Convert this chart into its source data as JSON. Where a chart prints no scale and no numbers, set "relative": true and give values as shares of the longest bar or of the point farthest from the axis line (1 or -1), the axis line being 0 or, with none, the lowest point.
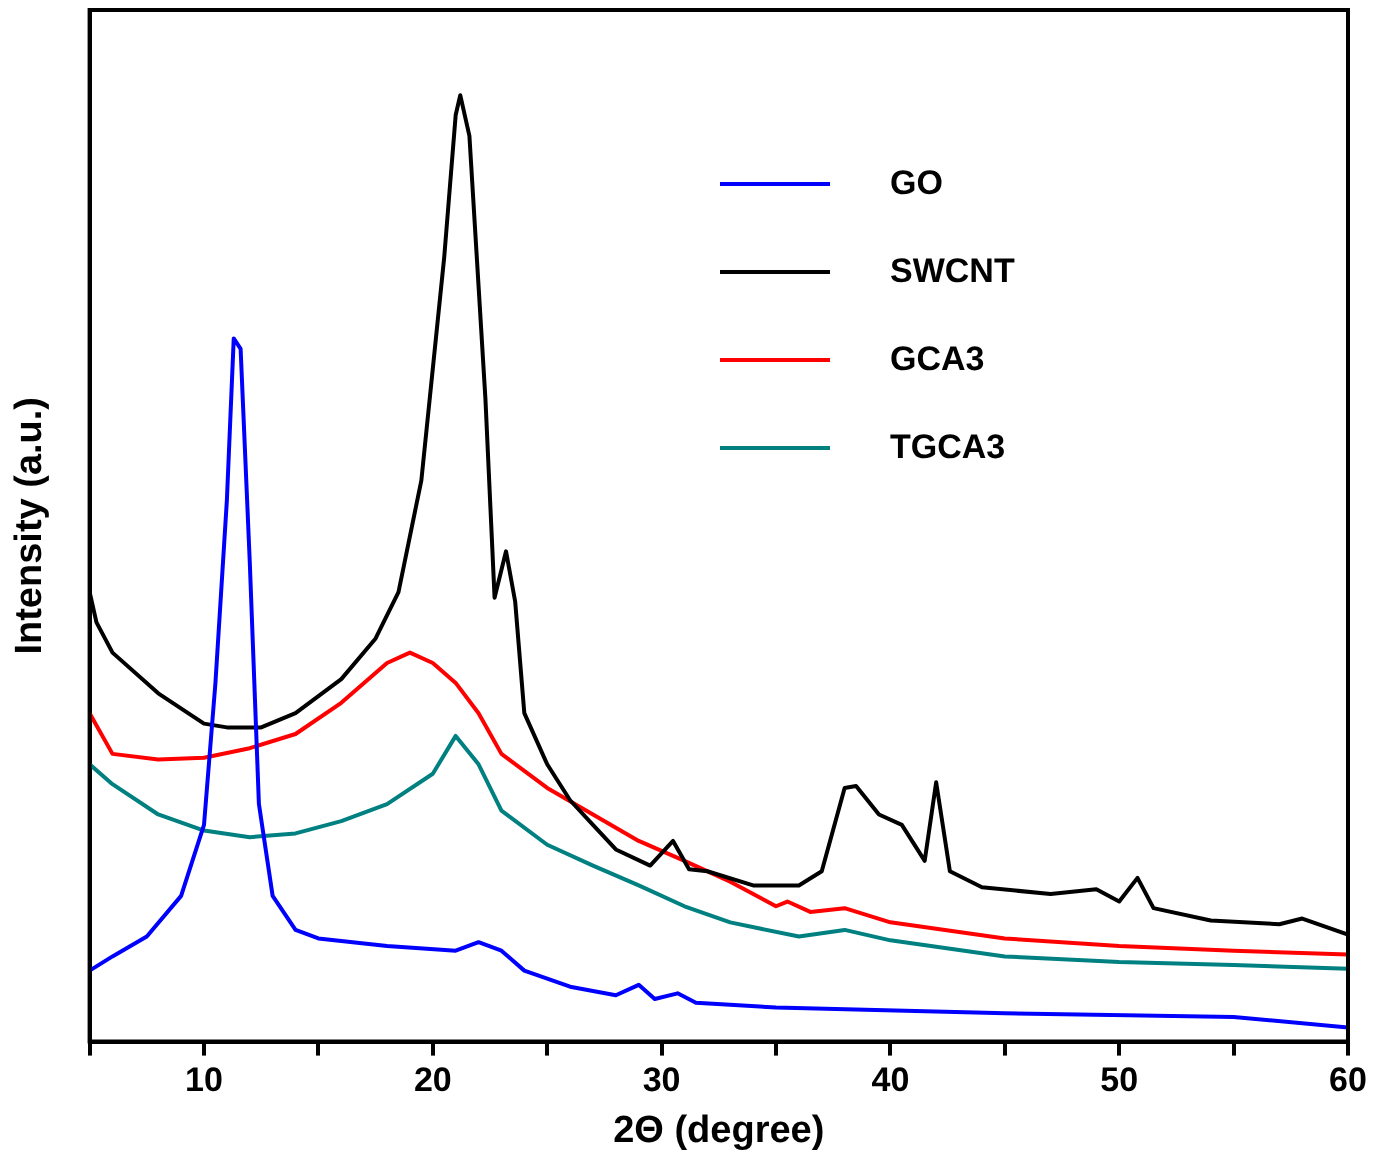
{
  "chart_data": {
    "type": "line",
    "relative": true,
    "xlabel": "2Θ (degree)",
    "ylabel": "Intensity (a.u.)",
    "xlim": [
      5,
      60
    ],
    "xticks": [
      {
        "value": 5,
        "label": null
      },
      10,
      {
        "value": 15,
        "label": null
      },
      20,
      {
        "value": 25,
        "label": null
      },
      30,
      {
        "value": 35,
        "label": null
      },
      40,
      {
        "value": 45,
        "label": null
      },
      50,
      {
        "value": 55,
        "label": null
      },
      60
    ],
    "tick_labels": "x",
    "grid": false,
    "legend": "top right",
    "marker": "none",
    "line_style": "solid",
    "series": [
      {
        "name": "GO",
        "color": "#0000ff",
        "x": [
          5,
          6,
          7.5,
          9,
          10,
          10.5,
          11,
          11.3,
          11.6,
          12,
          12.4,
          13,
          14,
          15,
          18,
          21,
          22,
          23,
          24,
          26,
          28,
          29,
          29.7,
          30.7,
          31.5,
          35,
          45,
          55,
          60
        ],
        "values": [
          0.075,
          0.09,
          0.111,
          0.154,
          0.229,
          0.379,
          0.572,
          0.743,
          0.732,
          0.507,
          0.251,
          0.154,
          0.118,
          0.109,
          0.101,
          0.096,
          0.105,
          0.096,
          0.075,
          0.058,
          0.049,
          0.06,
          0.045,
          0.051,
          0.041,
          0.036,
          0.03,
          0.026,
          0.015
        ]
      },
      {
        "name": "SWCNT",
        "color": "#000000",
        "x": [
          5,
          5.3,
          6,
          8,
          10,
          11,
          12.5,
          14,
          16,
          17.5,
          18.5,
          19.5,
          20.5,
          21,
          21.2,
          21.6,
          22.3,
          22.7,
          23.2,
          23.6,
          24,
          25,
          26,
          27,
          28,
          29.5,
          30.5,
          31.2,
          32,
          34,
          36,
          37,
          38,
          38.5,
          39.5,
          40.5,
          41.5,
          42,
          42.6,
          44,
          47,
          49,
          50,
          50.8,
          51.5,
          54,
          57,
          58,
          60
        ],
        "values": [
          0.475,
          0.443,
          0.411,
          0.368,
          0.336,
          0.332,
          0.332,
          0.347,
          0.383,
          0.426,
          0.475,
          0.593,
          0.829,
          0.979,
          1,
          0.957,
          0.679,
          0.469,
          0.518,
          0.465,
          0.347,
          0.293,
          0.255,
          0.229,
          0.203,
          0.186,
          0.212,
          0.182,
          0.18,
          0.165,
          0.165,
          0.18,
          0.268,
          0.27,
          0.24,
          0.229,
          0.191,
          0.274,
          0.18,
          0.163,
          0.156,
          0.161,
          0.148,
          0.173,
          0.141,
          0.128,
          0.124,
          0.13,
          0.113
        ]
      },
      {
        "name": "GCA3",
        "color": "#ff0000",
        "x": [
          5,
          6,
          8,
          10,
          12,
          14,
          16,
          18,
          19,
          20,
          21,
          22,
          23,
          25,
          27,
          29,
          31,
          33,
          35,
          35.5,
          36.5,
          38,
          40,
          45,
          50,
          55,
          60
        ],
        "values": [
          0.347,
          0.304,
          0.298,
          0.3,
          0.31,
          0.325,
          0.358,
          0.4,
          0.411,
          0.4,
          0.379,
          0.347,
          0.304,
          0.268,
          0.24,
          0.212,
          0.191,
          0.169,
          0.143,
          0.148,
          0.137,
          0.141,
          0.126,
          0.109,
          0.101,
          0.096,
          0.092
        ]
      },
      {
        "name": "TGCA3",
        "color": "#008080",
        "x": [
          5,
          6,
          8,
          10,
          12,
          14,
          16,
          18,
          20,
          21,
          22,
          23,
          25,
          27,
          29,
          31,
          33,
          36,
          38,
          40,
          45,
          50,
          55,
          60
        ],
        "values": [
          0.293,
          0.272,
          0.24,
          0.223,
          0.216,
          0.22,
          0.233,
          0.251,
          0.283,
          0.323,
          0.293,
          0.244,
          0.208,
          0.186,
          0.165,
          0.143,
          0.126,
          0.111,
          0.118,
          0.107,
          0.09,
          0.084,
          0.081,
          0.077
        ]
      }
    ]
  }
}
